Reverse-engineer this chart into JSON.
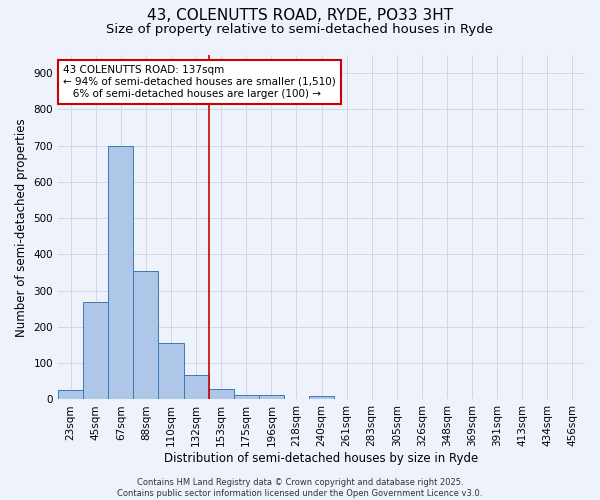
{
  "title1": "43, COLENUTTS ROAD, RYDE, PO33 3HT",
  "title2": "Size of property relative to semi-detached houses in Ryde",
  "xlabel": "Distribution of semi-detached houses by size in Ryde",
  "ylabel": "Number of semi-detached properties",
  "bin_labels": [
    "23sqm",
    "45sqm",
    "67sqm",
    "88sqm",
    "110sqm",
    "132sqm",
    "153sqm",
    "175sqm",
    "196sqm",
    "218sqm",
    "240sqm",
    "261sqm",
    "283sqm",
    "305sqm",
    "326sqm",
    "348sqm",
    "369sqm",
    "391sqm",
    "413sqm",
    "434sqm",
    "456sqm"
  ],
  "bar_values": [
    25,
    270,
    700,
    353,
    157,
    68,
    28,
    13,
    11,
    0,
    10,
    0,
    0,
    0,
    0,
    0,
    0,
    0,
    0,
    0,
    0
  ],
  "bar_color": "#aec6e8",
  "bar_edge_color": "#3c78b4",
  "grid_color": "#d0d8e8",
  "background_color": "#eef2fa",
  "vline_x": 5.5,
  "vline_color": "#cc0000",
  "annotation_line1": "43 COLENUTTS ROAD: 137sqm",
  "annotation_line2": "← 94% of semi-detached houses are smaller (1,510)",
  "annotation_line3": "   6% of semi-detached houses are larger (100) →",
  "annotation_box_color": "#ffffff",
  "annotation_box_edge_color": "#cc0000",
  "ylim": [
    0,
    950
  ],
  "yticks": [
    0,
    100,
    200,
    300,
    400,
    500,
    600,
    700,
    800,
    900
  ],
  "footer": "Contains HM Land Registry data © Crown copyright and database right 2025.\nContains public sector information licensed under the Open Government Licence v3.0.",
  "title1_fontsize": 11,
  "title2_fontsize": 9.5,
  "axis_fontsize": 8.5,
  "tick_fontsize": 7.5,
  "annotation_fontsize": 7.5,
  "footer_fontsize": 6.0
}
